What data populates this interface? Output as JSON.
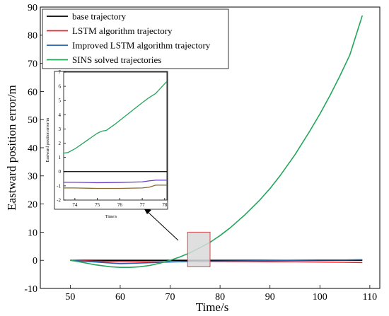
{
  "chart_data": [
    {
      "type": "line",
      "xlabel": "Time/s",
      "ylabel": "Eastward position error/m",
      "xlim": [
        44,
        112
      ],
      "ylim": [
        -10,
        90
      ],
      "xticks": [
        50,
        60,
        70,
        80,
        90,
        100,
        110
      ],
      "yticks": [
        -10,
        0,
        10,
        20,
        30,
        40,
        50,
        60,
        70,
        80,
        90
      ],
      "legend_position": "top-left",
      "series": [
        {
          "name": "base trajectory",
          "color": "#000000",
          "x": [
            50,
            108.5
          ],
          "y": [
            0,
            0
          ]
        },
        {
          "name": "LSTM algorithm trajectory",
          "color": "#e8232a",
          "x": [
            50,
            55,
            60,
            65,
            70,
            75,
            80,
            85,
            90,
            95,
            100,
            105,
            108.5
          ],
          "y": [
            0,
            -0.3,
            -0.5,
            -0.5,
            -0.5,
            -0.4,
            -0.4,
            -0.4,
            -0.5,
            -0.5,
            -0.6,
            -0.7,
            -0.8
          ]
        },
        {
          "name": "Improved LSTM algorithm trajectory",
          "color": "#1f5fae",
          "x": [
            50,
            55,
            60,
            65,
            70,
            75,
            80,
            85,
            90,
            95,
            100,
            105,
            108.5
          ],
          "y": [
            0,
            -0.6,
            -1.2,
            -0.9,
            -0.6,
            -0.4,
            -0.3,
            -0.2,
            -0.1,
            0,
            0.1,
            0.1,
            0.2
          ]
        },
        {
          "name": "SINS solved trajectories",
          "color": "#23a55a",
          "x": [
            50,
            52,
            55,
            58,
            60,
            62,
            64,
            66,
            68,
            70,
            72,
            74,
            76,
            78,
            80,
            82,
            85,
            88,
            90,
            92,
            95,
            98,
            100,
            102,
            104,
            106,
            108.5
          ],
          "y": [
            0,
            -0.6,
            -1.6,
            -2.3,
            -2.5,
            -2.5,
            -2.3,
            -1.8,
            -1.0,
            0.0,
            1.2,
            2.7,
            4.5,
            6.4,
            8.8,
            11.5,
            16.2,
            21.5,
            25.5,
            30.0,
            37.5,
            46.0,
            52.0,
            58.5,
            65.5,
            73.0,
            87.0
          ]
        }
      ],
      "annotation": {
        "zoom_box_x": [
          73.5,
          78
        ],
        "zoom_box_y": [
          -2.3,
          10
        ]
      }
    },
    {
      "type": "line",
      "xlabel": "Time/s",
      "ylabel": "Eastward position error/m",
      "xlim": [
        73.5,
        78.1
      ],
      "ylim": [
        -2,
        7
      ],
      "xticks": [
        74,
        75,
        76,
        77,
        78
      ],
      "yticks": [
        -2,
        -1,
        0,
        1,
        2,
        3,
        4,
        5,
        6,
        7
      ],
      "series": [
        {
          "name": "base trajectory",
          "color": "#000000",
          "x": [
            73.5,
            78.1
          ],
          "y": [
            0,
            0
          ]
        },
        {
          "name": "LSTM algorithm trajectory",
          "color": "#8a6a2c",
          "x": [
            73.5,
            74,
            75,
            76,
            77,
            77.3,
            77.6,
            78.1
          ],
          "y": [
            -1.15,
            -1.15,
            -1.18,
            -1.18,
            -1.15,
            -1.1,
            -0.95,
            -0.95
          ]
        },
        {
          "name": "Improved LSTM algorithm trajectory",
          "color": "#6a3fd0",
          "x": [
            73.5,
            74,
            75,
            76,
            77,
            77.3,
            77.6,
            78.1
          ],
          "y": [
            -0.75,
            -0.75,
            -0.78,
            -0.76,
            -0.72,
            -0.65,
            -0.6,
            -0.6
          ]
        },
        {
          "name": "SINS solved trajectories",
          "color": "#23a55a",
          "x": [
            73.5,
            73.7,
            74,
            74.5,
            75,
            75.2,
            75.4,
            75.8,
            76.2,
            76.6,
            77,
            77.3,
            77.6,
            78.1
          ],
          "y": [
            1.3,
            1.35,
            1.6,
            2.15,
            2.7,
            2.85,
            2.9,
            3.35,
            3.85,
            4.35,
            4.85,
            5.2,
            5.5,
            6.35
          ]
        }
      ]
    }
  ]
}
